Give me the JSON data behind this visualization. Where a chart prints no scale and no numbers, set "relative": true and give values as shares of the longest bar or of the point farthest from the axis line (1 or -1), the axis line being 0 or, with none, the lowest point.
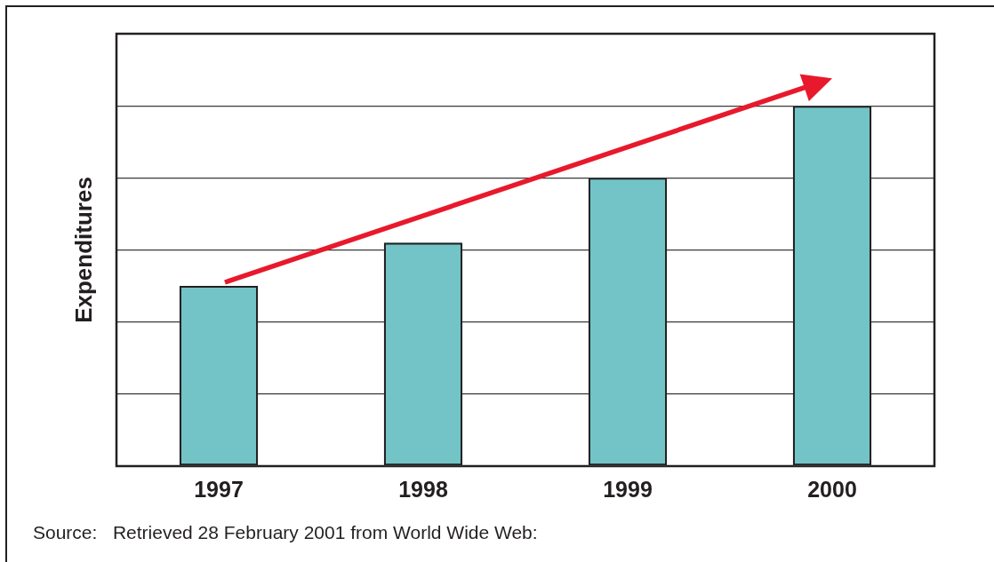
{
  "chart_data": {
    "type": "bar",
    "categories": [
      "1997",
      "1998",
      "1999",
      "2000"
    ],
    "values": [
      0.5,
      0.62,
      0.8,
      1
    ],
    "color": "#72c4c7",
    "relative": true,
    "ylabel": "Expenditures",
    "grid": "y",
    "annotations": [
      "Source:   Retrieved 28 February 2001 from World Wide Web:"
    ]
  }
}
